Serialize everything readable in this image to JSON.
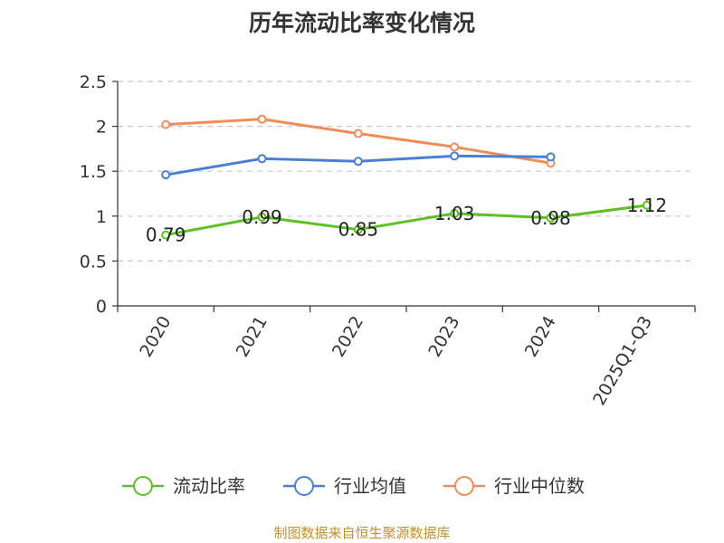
{
  "source": "制图数据来自恒生聚源数据库",
  "chart_data": {
    "type": "line",
    "title": "历年流动比率变化情况",
    "categories": [
      "2020",
      "2021",
      "2022",
      "2023",
      "2024",
      "2025Q1-Q3"
    ],
    "ylim": [
      0,
      2.5
    ],
    "yticks": [
      0,
      0.5,
      1,
      1.5,
      2,
      2.5
    ],
    "ytick_labels": [
      "0",
      "0.5",
      "1",
      "1.5",
      "2",
      "2.5"
    ],
    "grid": true,
    "legend_position": "bottom",
    "series": [
      {
        "name": "流动比率",
        "color": "#5cc121",
        "values": [
          0.79,
          0.99,
          0.85,
          1.03,
          0.98,
          1.12
        ],
        "labels": [
          "0.79",
          "0.99",
          "0.85",
          "1.03",
          "0.98",
          "1.12"
        ]
      },
      {
        "name": "行业均值",
        "color": "#4a7fd8",
        "values": [
          1.46,
          1.64,
          1.61,
          1.67,
          1.66,
          null
        ]
      },
      {
        "name": "行业中位数",
        "color": "#f28c57",
        "values": [
          2.02,
          2.08,
          1.92,
          1.77,
          1.59,
          null
        ]
      }
    ]
  }
}
